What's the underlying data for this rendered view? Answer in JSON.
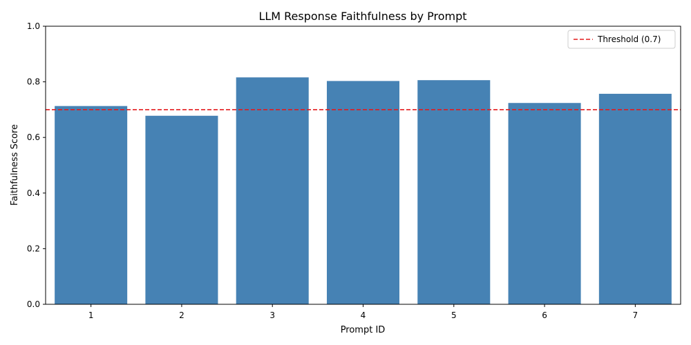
{
  "chart_data": {
    "type": "bar",
    "title": "LLM Response Faithfulness by Prompt",
    "xlabel": "Prompt ID",
    "ylabel": "Faithfulness Score",
    "categories": [
      "1",
      "2",
      "3",
      "4",
      "5",
      "6",
      "7"
    ],
    "values": [
      0.713,
      0.678,
      0.816,
      0.803,
      0.806,
      0.724,
      0.757
    ],
    "ylim": [
      0,
      1
    ],
    "yticks": [
      "0.0",
      "0.2",
      "0.4",
      "0.6",
      "0.8",
      "1.0"
    ],
    "grid": false,
    "bar_color": "#4682b4",
    "threshold": {
      "value": 0.7,
      "label": "Threshold (0.7)",
      "color": "#e41a1c",
      "style": "dashed"
    },
    "legend_position": "top-right"
  }
}
